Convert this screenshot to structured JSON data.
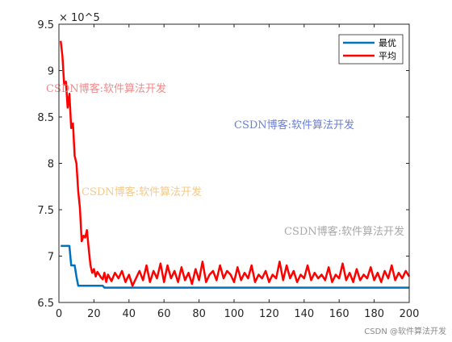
{
  "chart_data": {
    "type": "line",
    "title": "",
    "xlabel": "",
    "ylabel": "",
    "y_exponent_label": "× 10^5",
    "xlim": [
      0,
      200
    ],
    "ylim": [
      650000,
      950000
    ],
    "x_ticks": [
      0,
      20,
      40,
      60,
      80,
      100,
      120,
      140,
      160,
      180,
      200
    ],
    "x_tick_labels": [
      "0",
      "20",
      "40",
      "60",
      "80",
      "100",
      "120",
      "140",
      "160",
      "180",
      "200"
    ],
    "y_ticks": [
      650000,
      700000,
      750000,
      800000,
      850000,
      900000,
      950000
    ],
    "y_tick_labels": [
      "6.5",
      "7",
      "7.5",
      "8",
      "8.5",
      "9",
      "9.5"
    ],
    "grid": false,
    "legend_position": "top-right",
    "series": [
      {
        "name": "最优",
        "color": "#0072bd",
        "x": [
          1,
          5,
          6,
          7,
          9,
          10,
          11,
          12,
          25,
          26,
          200
        ],
        "y": [
          711000,
          711000,
          711000,
          690000,
          690000,
          678000,
          668000,
          668000,
          668000,
          666000,
          666000
        ]
      },
      {
        "name": "平均",
        "color": "#ff0000",
        "x": [
          1,
          2,
          3,
          4,
          5,
          6,
          7,
          8,
          9,
          10,
          11,
          12,
          13,
          14,
          15,
          16,
          17,
          18,
          19,
          20,
          21,
          22,
          23,
          24,
          25,
          26,
          27,
          28,
          30,
          32,
          34,
          36,
          38,
          40,
          42,
          44,
          46,
          48,
          50,
          52,
          54,
          56,
          58,
          60,
          62,
          64,
          66,
          68,
          70,
          72,
          74,
          76,
          78,
          80,
          82,
          84,
          86,
          88,
          90,
          92,
          94,
          96,
          98,
          100,
          102,
          104,
          106,
          108,
          110,
          112,
          114,
          116,
          118,
          120,
          122,
          124,
          126,
          128,
          130,
          132,
          134,
          136,
          138,
          140,
          142,
          144,
          146,
          148,
          150,
          152,
          154,
          156,
          158,
          160,
          162,
          164,
          166,
          168,
          170,
          172,
          174,
          176,
          178,
          180,
          182,
          184,
          186,
          188,
          190,
          192,
          194,
          196,
          198,
          200
        ],
        "y": [
          932000,
          916000,
          885000,
          888000,
          860000,
          875000,
          838000,
          843000,
          808000,
          800000,
          770000,
          752000,
          716000,
          722000,
          720000,
          728000,
          708000,
          690000,
          682000,
          686000,
          678000,
          683000,
          680000,
          677000,
          675000,
          682000,
          672000,
          680000,
          673000,
          682000,
          676000,
          684000,
          672000,
          680000,
          668000,
          676000,
          684000,
          674000,
          690000,
          672000,
          684000,
          676000,
          692000,
          672000,
          690000,
          676000,
          684000,
          672000,
          688000,
          674000,
          682000,
          670000,
          686000,
          674000,
          694000,
          672000,
          680000,
          684000,
          674000,
          690000,
          676000,
          684000,
          680000,
          672000,
          688000,
          674000,
          682000,
          676000,
          690000,
          672000,
          680000,
          676000,
          684000,
          672000,
          680000,
          676000,
          694000,
          674000,
          690000,
          676000,
          684000,
          672000,
          680000,
          676000,
          690000,
          674000,
          682000,
          676000,
          680000,
          674000,
          688000,
          672000,
          680000,
          676000,
          692000,
          674000,
          682000,
          672000,
          686000,
          674000,
          680000,
          676000,
          688000,
          674000,
          682000,
          672000,
          684000,
          676000,
          690000,
          674000,
          682000,
          676000,
          684000,
          678000
        ]
      }
    ]
  },
  "watermarks": [
    {
      "text": "CSDN博客:软件算法开发",
      "color": "#f08a8a"
    },
    {
      "text": "CSDN博客:软件算法开发",
      "color": "#6b7fd6"
    },
    {
      "text": "CSDN博客:软件算法开发",
      "color": "#f5c98a"
    },
    {
      "text": "CSDN博客:软件算法开发",
      "color": "#a8a8a8"
    }
  ],
  "footer_text": "CSDN @软件算法开发"
}
